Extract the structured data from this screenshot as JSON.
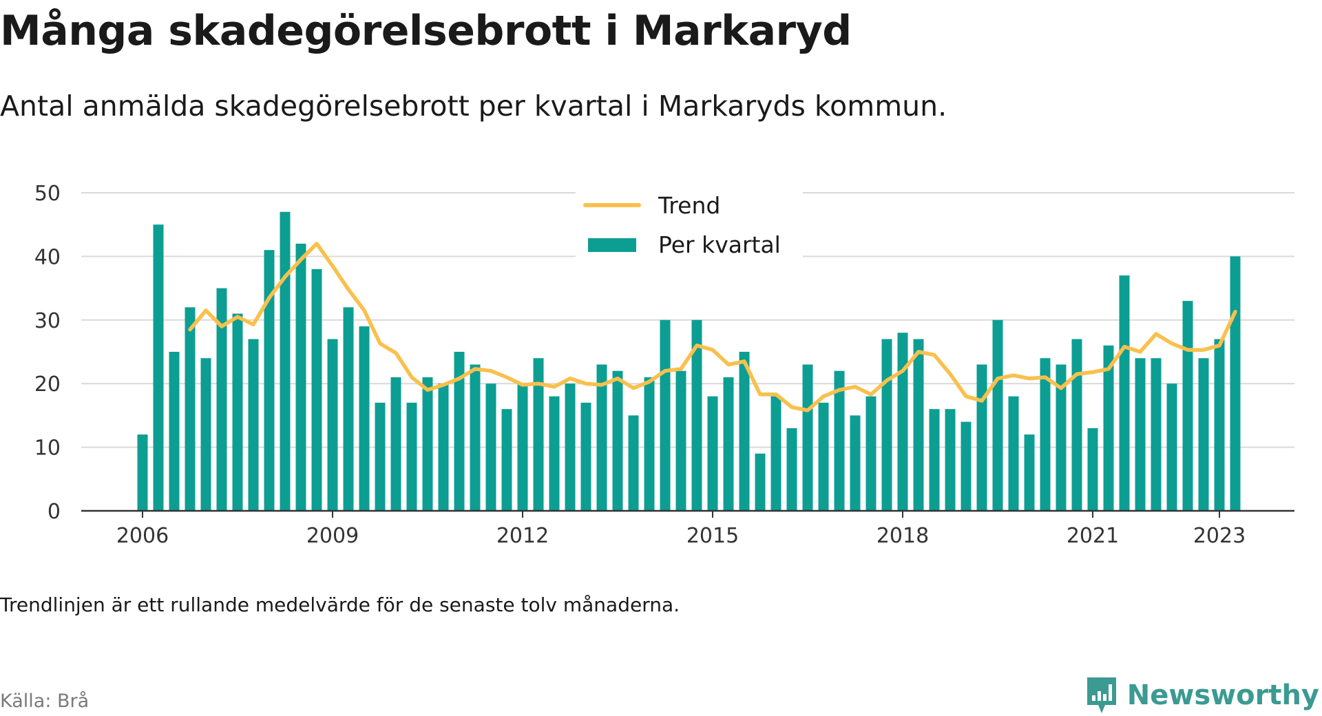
{
  "title": "Många skadegörelsebrott i Markaryd",
  "subtitle": "Antal anmälda skadegörelsebrott per kvartal i Markaryds kommun.",
  "note": "Trendlinjen är ett rullande medelvärde för de senaste tolv månaderna.",
  "source": "Källa: Brå",
  "logo_text": "Newsworthy",
  "colors": {
    "bar": "#0d9e93",
    "trend": "#f9c04d",
    "grid": "#d9d9d9",
    "axis": "#333333",
    "logo": "#3b9a91"
  },
  "chart_data": {
    "type": "bar",
    "title": "",
    "xlabel": "",
    "ylabel": "",
    "ylim": [
      0,
      50
    ],
    "yticks": [
      0,
      10,
      20,
      30,
      40,
      50
    ],
    "xticks": [
      "2006",
      "2009",
      "2012",
      "2015",
      "2018",
      "2021",
      "2023"
    ],
    "grid": true,
    "legend_position": "top-center",
    "categories": [
      "2006 Q1",
      "2006 Q2",
      "2006 Q3",
      "2006 Q4",
      "2007 Q1",
      "2007 Q2",
      "2007 Q3",
      "2007 Q4",
      "2008 Q1",
      "2008 Q2",
      "2008 Q3",
      "2008 Q4",
      "2009 Q1",
      "2009 Q2",
      "2009 Q3",
      "2009 Q4",
      "2010 Q1",
      "2010 Q2",
      "2010 Q3",
      "2010 Q4",
      "2011 Q1",
      "2011 Q2",
      "2011 Q3",
      "2011 Q4",
      "2012 Q1",
      "2012 Q2",
      "2012 Q3",
      "2012 Q4",
      "2013 Q1",
      "2013 Q2",
      "2013 Q3",
      "2013 Q4",
      "2014 Q1",
      "2014 Q2",
      "2014 Q3",
      "2014 Q4",
      "2015 Q1",
      "2015 Q2",
      "2015 Q3",
      "2015 Q4",
      "2016 Q1",
      "2016 Q2",
      "2016 Q3",
      "2016 Q4",
      "2017 Q1",
      "2017 Q2",
      "2017 Q3",
      "2017 Q4",
      "2018 Q1",
      "2018 Q2",
      "2018 Q3",
      "2018 Q4",
      "2019 Q1",
      "2019 Q2",
      "2019 Q3",
      "2019 Q4",
      "2020 Q1",
      "2020 Q2",
      "2020 Q3",
      "2020 Q4",
      "2021 Q1",
      "2021 Q2",
      "2021 Q3",
      "2021 Q4",
      "2022 Q1",
      "2022 Q2",
      "2022 Q3",
      "2022 Q4",
      "2023 Q1",
      "2023 Q2"
    ],
    "series": [
      {
        "name": "Per kvartal",
        "type": "bar",
        "values": [
          12,
          45,
          25,
          32,
          24,
          35,
          31,
          27,
          41,
          47,
          42,
          38,
          27,
          32,
          29,
          17,
          21,
          17,
          21,
          20,
          25,
          23,
          20,
          16,
          20,
          24,
          18,
          20,
          17,
          23,
          22,
          15,
          21,
          30,
          22,
          30,
          18,
          21,
          25,
          9,
          18,
          13,
          23,
          17,
          22,
          15,
          18,
          27,
          28,
          27,
          16,
          16,
          14,
          23,
          30,
          18,
          12,
          24,
          23,
          27,
          13,
          26,
          37,
          24,
          24,
          20,
          33,
          24,
          27,
          40
        ]
      },
      {
        "name": "Trend",
        "type": "line",
        "values": [
          null,
          null,
          null,
          28.5,
          31.5,
          29.0,
          30.5,
          29.3,
          33.5,
          36.8,
          39.5,
          42.0,
          38.5,
          34.8,
          31.5,
          26.3,
          24.8,
          21.0,
          19.0,
          19.8,
          20.8,
          22.3,
          22.0,
          21.0,
          19.8,
          20.0,
          19.5,
          20.8,
          20.0,
          19.8,
          20.8,
          19.3,
          20.3,
          22.0,
          22.3,
          26.0,
          25.3,
          23.0,
          23.5,
          18.3,
          18.3,
          16.3,
          15.8,
          18.0,
          19.0,
          19.5,
          18.3,
          20.5,
          22.0,
          25.0,
          24.5,
          21.5,
          18.0,
          17.3,
          20.8,
          21.3,
          20.8,
          21.0,
          19.3,
          21.5,
          21.8,
          22.3,
          25.8,
          25.0,
          27.8,
          26.3,
          25.3,
          25.3,
          26.0,
          31.3
        ]
      }
    ]
  }
}
